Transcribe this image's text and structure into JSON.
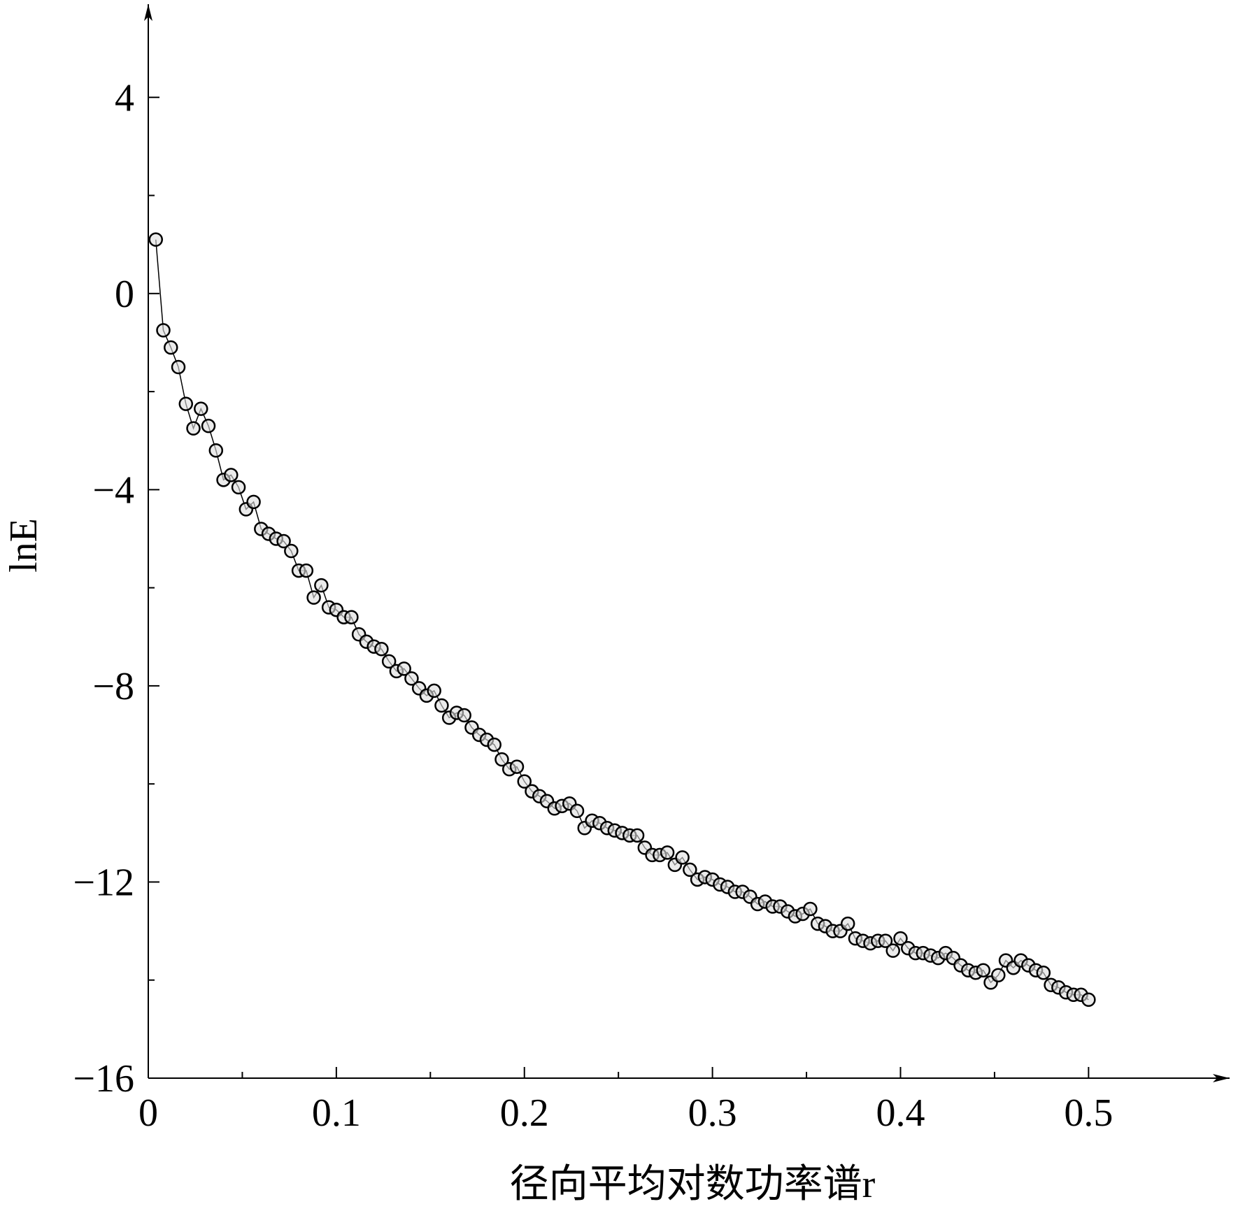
{
  "chart_data": {
    "type": "line",
    "xlabel": "径向平均对数功率谱r",
    "ylabel": "lnE",
    "xlim": [
      0,
      0.575
    ],
    "ylim": [
      -16,
      5.9
    ],
    "xticks": [
      0,
      0.1,
      0.2,
      0.3,
      0.4,
      0.5
    ],
    "xminorticks": [
      0.05,
      0.15,
      0.25,
      0.35,
      0.45
    ],
    "yticks": [
      {
        "value": -16,
        "label": "−16"
      },
      {
        "value": -12,
        "label": "−12"
      },
      {
        "value": -8,
        "label": "−8"
      },
      {
        "value": -4,
        "label": "−4"
      },
      0,
      4
    ],
    "yminorticks": [
      -14,
      -10,
      -6,
      -2,
      2
    ],
    "color": "#000000",
    "x": [
      0.004,
      0.008,
      0.012,
      0.016,
      0.02,
      0.024,
      0.028,
      0.032,
      0.036,
      0.04,
      0.044,
      0.048,
      0.052,
      0.056,
      0.06,
      0.064,
      0.068,
      0.072,
      0.076,
      0.08,
      0.084,
      0.088,
      0.092,
      0.096,
      0.1,
      0.104,
      0.108,
      0.112,
      0.116,
      0.12,
      0.124,
      0.128,
      0.132,
      0.136,
      0.14,
      0.144,
      0.148,
      0.152,
      0.156,
      0.16,
      0.164,
      0.168,
      0.172,
      0.176,
      0.18,
      0.184,
      0.188,
      0.192,
      0.196,
      0.2,
      0.204,
      0.208,
      0.212,
      0.216,
      0.22,
      0.224,
      0.228,
      0.232,
      0.236,
      0.24,
      0.244,
      0.248,
      0.252,
      0.256,
      0.26,
      0.264,
      0.268,
      0.272,
      0.276,
      0.28,
      0.284,
      0.288,
      0.292,
      0.296,
      0.3,
      0.304,
      0.308,
      0.312,
      0.316,
      0.32,
      0.324,
      0.328,
      0.332,
      0.336,
      0.34,
      0.344,
      0.348,
      0.352,
      0.356,
      0.36,
      0.364,
      0.368,
      0.372,
      0.376,
      0.38,
      0.384,
      0.388,
      0.392,
      0.396,
      0.4,
      0.404,
      0.408,
      0.412,
      0.416,
      0.42,
      0.424,
      0.428,
      0.432,
      0.436,
      0.44,
      0.444,
      0.448,
      0.452,
      0.456,
      0.46,
      0.464,
      0.468,
      0.472,
      0.476,
      0.48,
      0.484,
      0.488,
      0.492,
      0.496,
      0.5
    ],
    "values": [
      1.1,
      -0.75,
      -1.1,
      -1.5,
      -2.25,
      -2.75,
      -2.35,
      -2.7,
      -3.2,
      -3.8,
      -3.7,
      -3.95,
      -4.4,
      -4.25,
      -4.8,
      -4.9,
      -5.0,
      -5.05,
      -5.25,
      -5.65,
      -5.65,
      -6.2,
      -5.95,
      -6.4,
      -6.45,
      -6.6,
      -6.6,
      -6.95,
      -7.1,
      -7.2,
      -7.25,
      -7.5,
      -7.7,
      -7.65,
      -7.85,
      -8.05,
      -8.2,
      -8.1,
      -8.4,
      -8.65,
      -8.55,
      -8.6,
      -8.85,
      -9.0,
      -9.1,
      -9.2,
      -9.5,
      -9.7,
      -9.65,
      -9.95,
      -10.15,
      -10.25,
      -10.35,
      -10.5,
      -10.45,
      -10.4,
      -10.55,
      -10.9,
      -10.75,
      -10.8,
      -10.9,
      -10.95,
      -11.0,
      -11.05,
      -11.05,
      -11.3,
      -11.45,
      -11.45,
      -11.4,
      -11.65,
      -11.5,
      -11.75,
      -11.95,
      -11.9,
      -11.95,
      -12.05,
      -12.1,
      -12.2,
      -12.2,
      -12.3,
      -12.45,
      -12.4,
      -12.5,
      -12.5,
      -12.6,
      -12.7,
      -12.65,
      -12.55,
      -12.85,
      -12.9,
      -13.0,
      -13.0,
      -12.85,
      -13.15,
      -13.2,
      -13.25,
      -13.2,
      -13.2,
      -13.4,
      -13.15,
      -13.35,
      -13.45,
      -13.45,
      -13.5,
      -13.55,
      -13.45,
      -13.55,
      -13.7,
      -13.8,
      -13.85,
      -13.8,
      -14.05,
      -13.9,
      -13.6,
      -13.75,
      -13.6,
      -13.7,
      -13.8,
      -13.85,
      -14.1,
      -14.15,
      -14.25,
      -14.3,
      -14.3,
      -14.4
    ]
  }
}
